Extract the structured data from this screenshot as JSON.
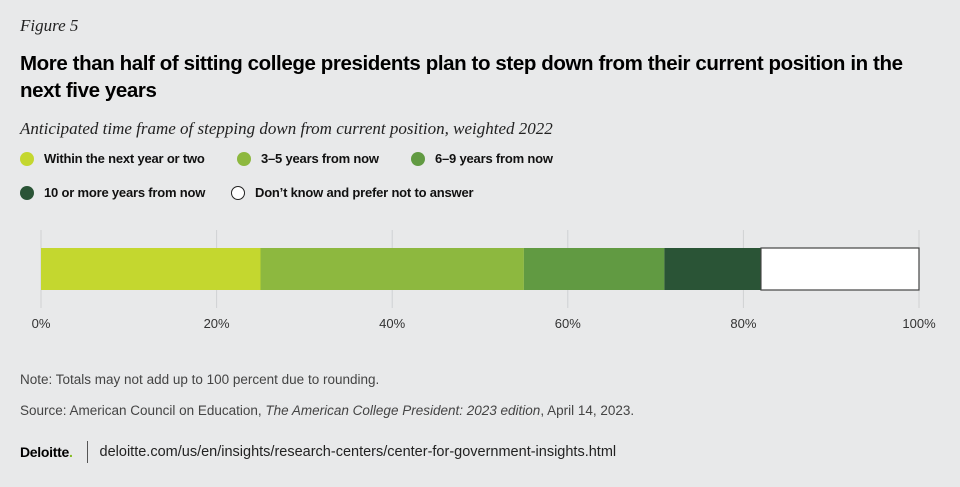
{
  "figure_label": "Figure 5",
  "chart_data": {
    "type": "bar",
    "orientation": "horizontal-stacked",
    "title": "More than half of sitting college presidents plan to step down from their current position in the next five years",
    "subtitle": "Anticipated time frame of stepping down from current position, weighted 2022",
    "series": [
      {
        "name": "Within the next year or two",
        "value": 25,
        "color": "#c4d72f"
      },
      {
        "name": "3–5 years from now",
        "value": 30,
        "color": "#8db83f"
      },
      {
        "name": "6–9 years from now",
        "value": 16,
        "color": "#619a42"
      },
      {
        "name": "10 or more years from now",
        "value": 11,
        "color": "#2a5436"
      },
      {
        "name": "Don’t know and prefer not to answer",
        "value": 17,
        "color": "#ffffff"
      }
    ],
    "xlim": [
      0,
      100
    ],
    "x_ticks": [
      "0%",
      "20%",
      "40%",
      "60%",
      "80%",
      "100%"
    ],
    "grid": true,
    "legend_placement": "top"
  },
  "note": "Note: Totals may not add up to 100 percent due to rounding.",
  "source": {
    "prefix": "Source: American Council on Education, ",
    "title": "The American College President: 2023 edition",
    "suffix": ", April 14, 2023."
  },
  "footer": {
    "logo": "Deloitte",
    "url": "deloitte.com/us/en/insights/research-centers/center-for-government-insights.html"
  }
}
